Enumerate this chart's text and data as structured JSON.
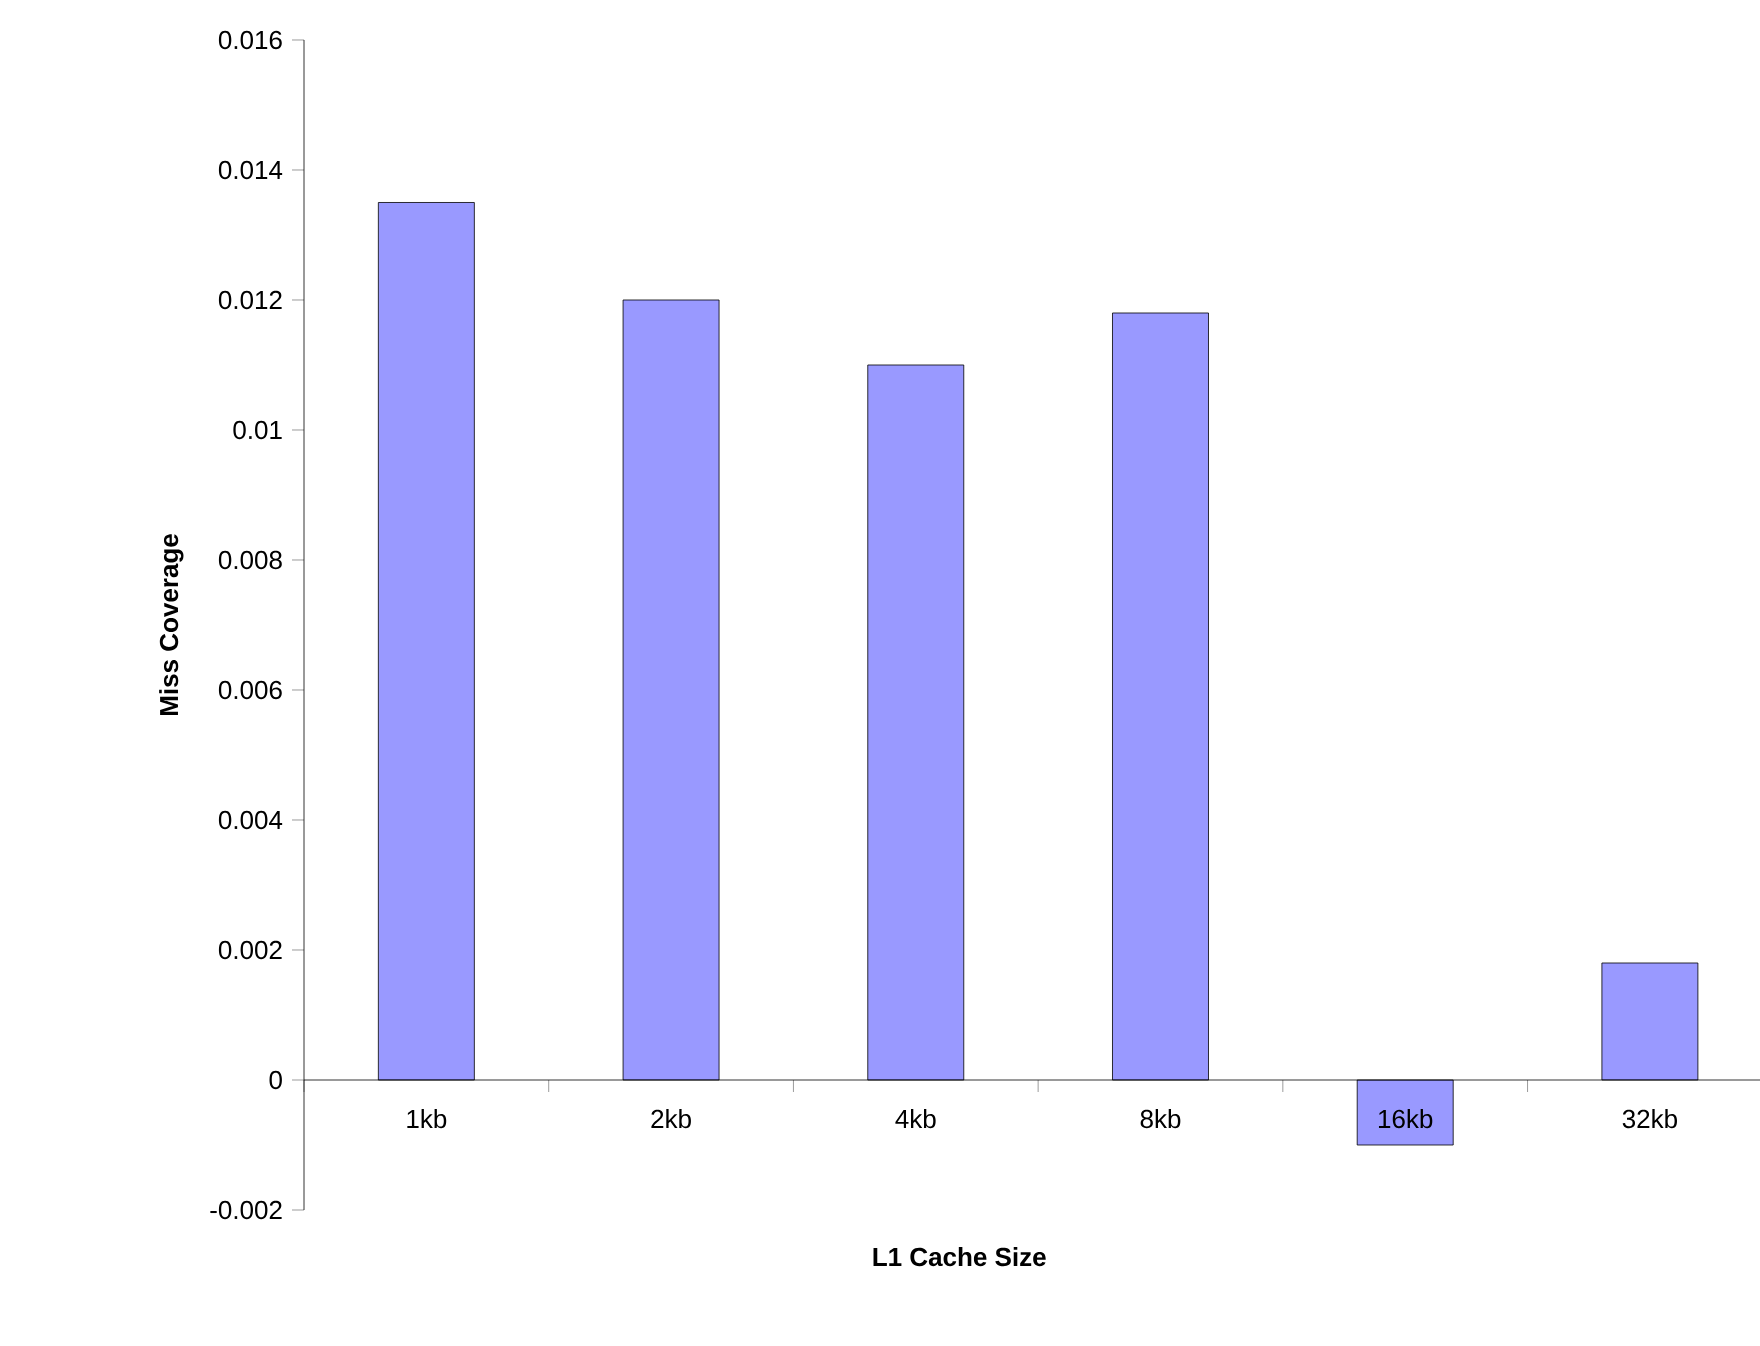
{
  "chart_data": {
    "type": "bar",
    "xlabel": "L1 Cache Size",
    "ylabel": "Miss Coverage",
    "categories": [
      "1kb",
      "2kb",
      "4kb",
      "8kb",
      "16kb",
      "32kb"
    ],
    "values": [
      0.0135,
      0.012,
      0.011,
      0.0118,
      -0.001,
      0.0018
    ],
    "color": "#9999ff",
    "ylim": [
      -0.002,
      0.016
    ],
    "yticks": [
      -0.002,
      0,
      0.002,
      0.004,
      0.006,
      0.008,
      0.01,
      0.012,
      0.014,
      0.016
    ],
    "grid": false
  }
}
